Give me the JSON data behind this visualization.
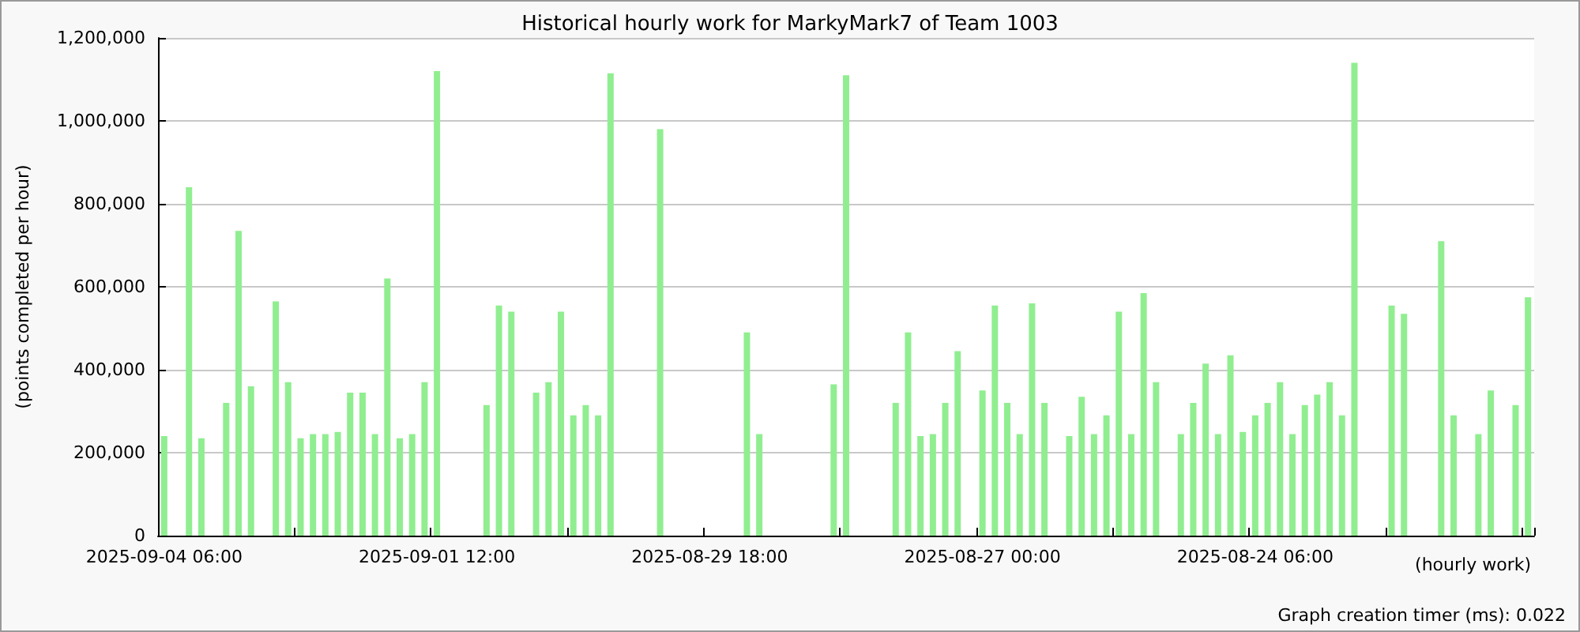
{
  "chart_data": {
    "type": "bar",
    "title": "Historical hourly work for MarkyMark7 of Team 1003",
    "xlabel": "(hourly work)",
    "ylabel": "(points completed per hour)",
    "annotations": [
      "Graph creation timer (ms): 0.022"
    ],
    "categories": [
      "2025-09-04 06:00",
      null,
      null,
      null,
      null,
      null,
      null,
      null,
      null,
      null,
      null,
      null,
      null,
      null,
      null,
      null,
      null,
      null,
      null,
      null,
      null,
      null,
      "2025-09-01 12:00",
      null,
      null,
      null,
      null,
      null,
      null,
      null,
      null,
      null,
      null,
      null,
      null,
      null,
      null,
      null,
      null,
      null,
      null,
      null,
      null,
      null,
      "2025-08-29 18:00",
      null,
      null,
      null,
      null,
      null,
      null,
      null,
      null,
      null,
      null,
      null,
      null,
      null,
      null,
      null,
      null,
      null,
      null,
      null,
      null,
      null,
      "2025-08-27 00:00",
      null,
      null,
      null,
      null,
      null,
      null,
      null,
      null,
      null,
      null,
      null,
      null,
      null,
      null,
      null,
      null,
      null,
      null,
      null,
      null,
      null,
      "2025-08-24 06:00",
      null,
      null,
      null,
      null,
      null,
      null,
      null,
      null,
      null,
      null,
      null,
      null,
      null,
      null,
      null,
      null,
      null,
      null,
      null,
      null,
      null,
      null
    ],
    "values": [
      240000,
      null,
      840000,
      235000,
      null,
      320000,
      735000,
      360000,
      null,
      565000,
      370000,
      235000,
      245000,
      245000,
      250000,
      345000,
      345000,
      245000,
      620000,
      235000,
      245000,
      370000,
      1120000,
      null,
      null,
      null,
      315000,
      555000,
      540000,
      null,
      345000,
      370000,
      540000,
      290000,
      315000,
      290000,
      1115000,
      null,
      null,
      null,
      980000,
      null,
      null,
      null,
      null,
      null,
      null,
      490000,
      245000,
      null,
      null,
      null,
      null,
      null,
      365000,
      1110000,
      null,
      null,
      null,
      320000,
      490000,
      240000,
      245000,
      320000,
      445000,
      null,
      350000,
      555000,
      320000,
      245000,
      560000,
      320000,
      null,
      240000,
      335000,
      245000,
      290000,
      540000,
      245000,
      585000,
      370000,
      null,
      245000,
      320000,
      415000,
      245000,
      435000,
      250000,
      290000,
      320000,
      370000,
      245000,
      315000,
      340000,
      370000,
      290000,
      1140000,
      null,
      null,
      555000,
      535000,
      null,
      null,
      710000,
      290000,
      null,
      245000,
      350000,
      null,
      315000,
      575000
    ],
    "color": "#90ee90",
    "ylim": [
      0,
      1200000
    ],
    "yticks": [
      {
        "value": 0,
        "label": "0"
      },
      {
        "value": 200000,
        "label": "200,000"
      },
      {
        "value": 400000,
        "label": "400,000"
      },
      {
        "value": 600000,
        "label": "600,000"
      },
      {
        "value": 800000,
        "label": "800,000"
      },
      {
        "value": 1000000,
        "label": "1,000,000"
      },
      {
        "value": 1200000,
        "label": "1,200,000"
      }
    ],
    "grid": "y"
  }
}
